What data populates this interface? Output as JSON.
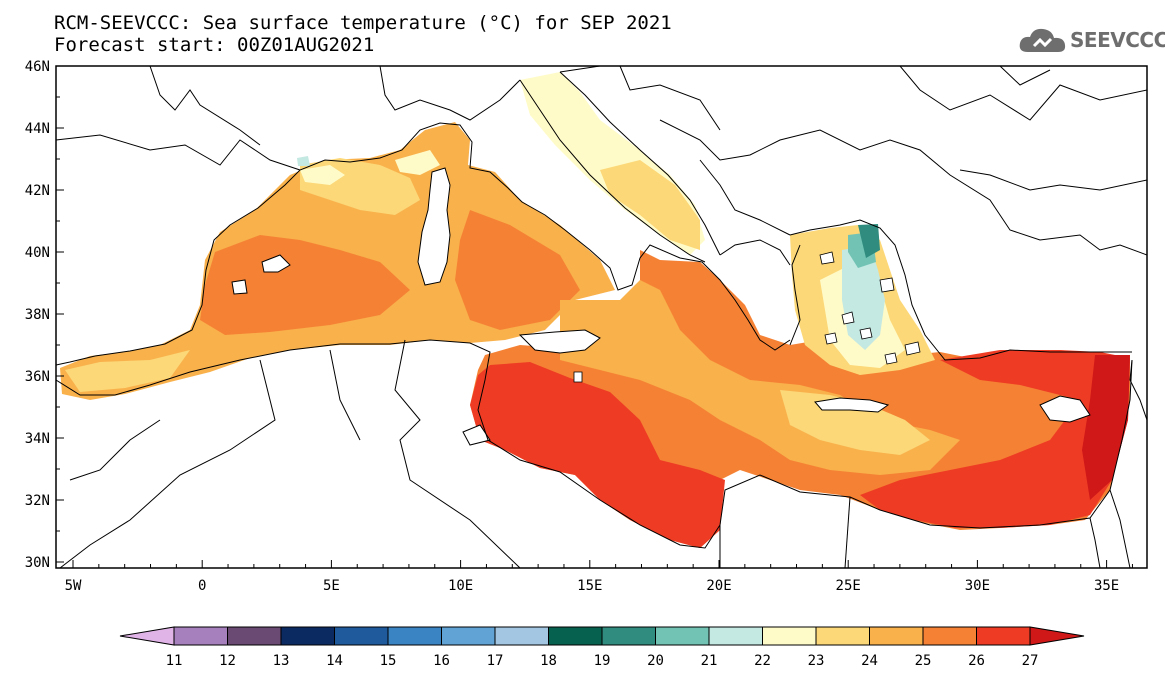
{
  "title_line1": "RCM-SEEVCCC: Sea surface temperature (°C) for SEP 2021",
  "title_line2": "Forecast start: 00Z01AUG2021",
  "logo_text": "SEEVCCC",
  "lat_labels": [
    "46N",
    "44N",
    "42N",
    "40N",
    "38N",
    "36N",
    "34N",
    "32N",
    "30N"
  ],
  "lon_labels": [
    "5W",
    "0",
    "5E",
    "10E",
    "15E",
    "20E",
    "25E",
    "30E",
    "35E"
  ],
  "colorbar": {
    "labels": [
      "11",
      "12",
      "13",
      "14",
      "15",
      "16",
      "17",
      "18",
      "19",
      "20",
      "21",
      "22",
      "23",
      "24",
      "25",
      "26",
      "27"
    ],
    "colors": [
      "#e0b4e6",
      "#a67fbd",
      "#6a4a72",
      "#0c2a62",
      "#1e5a9c",
      "#3b84c4",
      "#62a3d6",
      "#a3c7e3",
      "#07614f",
      "#2f8c7e",
      "#72c3b4",
      "#c4e8e2",
      "#fffbc8",
      "#fcd878",
      "#f9b14c",
      "#f58234",
      "#ee3c24",
      "#d01818"
    ]
  },
  "legend_icons": {
    "left_arrow": "colorbar-min-arrow",
    "right_arrow": "colorbar-max-arrow"
  }
}
